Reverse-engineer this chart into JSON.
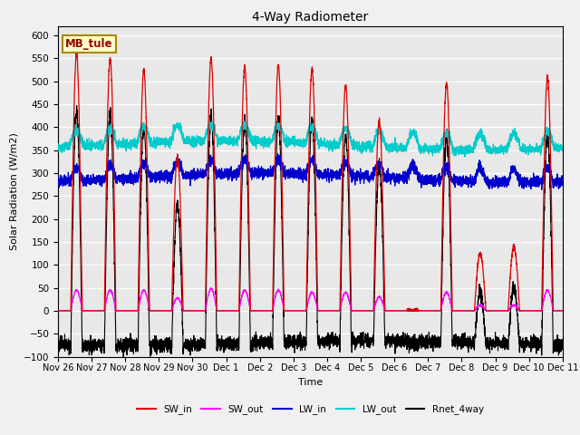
{
  "title": "4-Way Radiometer",
  "ylabel": "Solar Radiation (W/m2)",
  "xlabel": "Time",
  "ylim": [
    -100,
    620
  ],
  "yticks": [
    -100,
    -50,
    0,
    50,
    100,
    150,
    200,
    250,
    300,
    350,
    400,
    450,
    500,
    550,
    600
  ],
  "xlim": [
    0,
    15
  ],
  "xtick_labels": [
    "Nov 26",
    "Nov 27",
    "Nov 28",
    "Nov 29",
    "Nov 30",
    "Dec 1",
    "Dec 2",
    "Dec 3",
    "Dec 4",
    "Dec 5",
    "Dec 6",
    "Dec 7",
    "Dec 8",
    "Dec 9",
    "Dec 10",
    "Dec 11"
  ],
  "xtick_positions": [
    0,
    1,
    2,
    3,
    4,
    5,
    6,
    7,
    8,
    9,
    10,
    11,
    12,
    13,
    14,
    15
  ],
  "colors": {
    "SW_in": "#dd0000",
    "SW_out": "#ff00ff",
    "LW_in": "#0000cc",
    "LW_out": "#00cccc",
    "Rnet_4way": "#000000"
  },
  "legend_labels": [
    "SW_in",
    "SW_out",
    "LW_in",
    "LW_out",
    "Rnet_4way"
  ],
  "station_label": "MB_tule",
  "bg_color": "#e8e8e8",
  "fig_color": "#f0f0f0",
  "grid_color": "#ffffff",
  "sw_in_peaks": [
    560,
    550,
    525,
    335,
    550,
    530,
    535,
    525,
    490,
    415,
    0,
    495,
    125,
    140,
    510
  ],
  "sw_out_peaks": [
    45,
    45,
    45,
    28,
    48,
    45,
    45,
    40,
    40,
    30,
    0,
    40,
    12,
    12,
    45
  ],
  "lw_in_base": 290,
  "lw_out_base": 360,
  "day_start": 0.38,
  "day_end": 0.72
}
